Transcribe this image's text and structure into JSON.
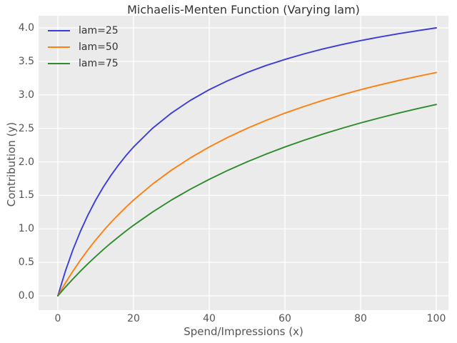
{
  "chart_data": {
    "type": "line",
    "title": "Michaelis-Menten Function (Varying lam)",
    "xlabel": "Spend/Impressions (x)",
    "ylabel": "Contribution (y)",
    "xlim": [
      -5,
      104
    ],
    "ylim": [
      -0.21,
      4.18
    ],
    "grid": true,
    "legend_position": "upper left",
    "legend_frame": false,
    "xticks": {
      "values": [
        0,
        20,
        40,
        60,
        80,
        100
      ],
      "labels": [
        "0",
        "20",
        "40",
        "60",
        "80",
        "100"
      ]
    },
    "yticks": {
      "values": [
        0,
        0.5,
        1,
        1.5,
        2,
        2.5,
        3,
        3.5,
        4
      ],
      "labels": [
        "0.0",
        "0.5",
        "1.0",
        "1.5",
        "2.0",
        "2.5",
        "3.0",
        "3.5",
        "4.0"
      ]
    },
    "x": [
      0,
      2,
      4,
      6,
      8,
      10,
      12,
      14,
      16,
      18,
      20,
      25,
      30,
      35,
      40,
      45,
      50,
      55,
      60,
      65,
      70,
      75,
      80,
      85,
      90,
      95,
      100
    ],
    "series": [
      {
        "name": "lam=25",
        "lam": 25,
        "vmax": 5,
        "color": "#3c3cd9",
        "y": [
          0,
          0.37,
          0.69,
          0.968,
          1.212,
          1.429,
          1.622,
          1.795,
          1.951,
          2.093,
          2.222,
          2.5,
          2.727,
          2.917,
          3.077,
          3.214,
          3.333,
          3.438,
          3.529,
          3.611,
          3.684,
          3.75,
          3.81,
          3.864,
          3.913,
          3.958,
          4.0
        ]
      },
      {
        "name": "lam=50",
        "lam": 50,
        "vmax": 5,
        "color": "#ff7f0e",
        "y": [
          0,
          0.192,
          0.37,
          0.536,
          0.69,
          0.833,
          0.968,
          1.094,
          1.212,
          1.324,
          1.429,
          1.667,
          1.875,
          2.059,
          2.222,
          2.368,
          2.5,
          2.619,
          2.727,
          2.826,
          2.917,
          3.0,
          3.077,
          3.148,
          3.214,
          3.276,
          3.333
        ]
      },
      {
        "name": "lam=75",
        "lam": 75,
        "vmax": 5,
        "color": "#2e8b2e",
        "y": [
          0,
          0.13,
          0.253,
          0.37,
          0.482,
          0.588,
          0.69,
          0.787,
          0.879,
          0.968,
          1.053,
          1.25,
          1.429,
          1.591,
          1.739,
          1.875,
          2.0,
          2.115,
          2.222,
          2.321,
          2.414,
          2.5,
          2.581,
          2.656,
          2.727,
          2.794,
          2.857
        ]
      }
    ]
  },
  "style": {
    "figure_bg": "#ffffff",
    "plot_bg": "#ebebeb",
    "grid_color": "#ffffff",
    "tick_color": "#555555",
    "title_color": "#333333"
  }
}
